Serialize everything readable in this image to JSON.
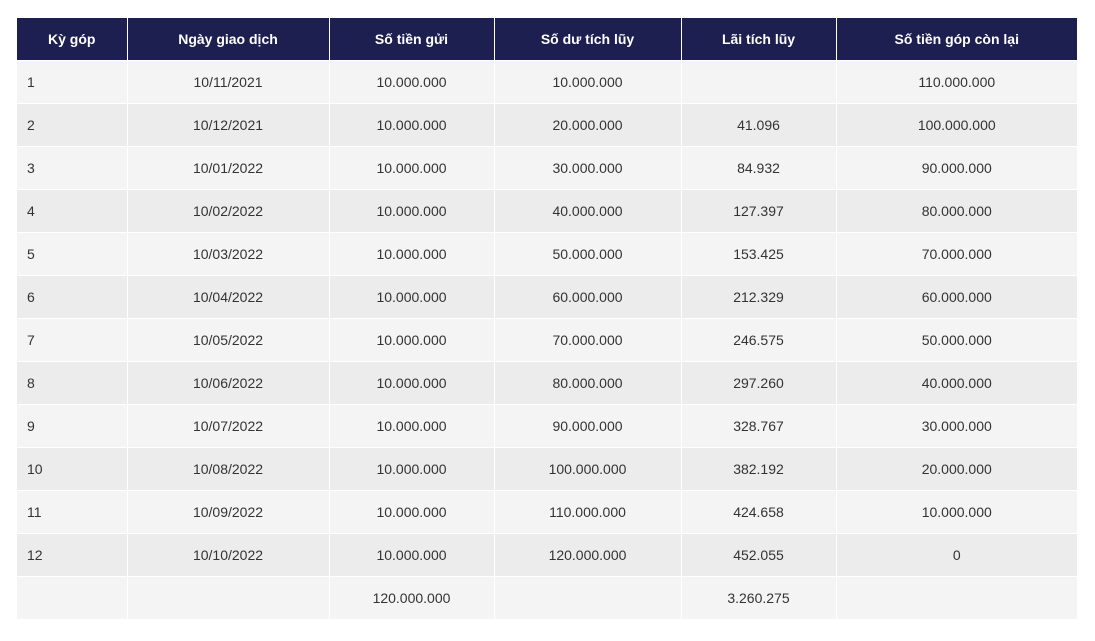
{
  "table": {
    "headers": [
      "Kỳ góp",
      "Ngày giao dịch",
      "Số tiền gửi",
      "Số dư tích lũy",
      "Lãi tích lũy",
      "Số tiền góp còn lại"
    ],
    "rows": [
      [
        "1",
        "10/11/2021",
        "10.000.000",
        "10.000.000",
        "",
        "110.000.000"
      ],
      [
        "2",
        "10/12/2021",
        "10.000.000",
        "20.000.000",
        "41.096",
        "100.000.000"
      ],
      [
        "3",
        "10/01/2022",
        "10.000.000",
        "30.000.000",
        "84.932",
        "90.000.000"
      ],
      [
        "4",
        "10/02/2022",
        "10.000.000",
        "40.000.000",
        "127.397",
        "80.000.000"
      ],
      [
        "5",
        "10/03/2022",
        "10.000.000",
        "50.000.000",
        "153.425",
        "70.000.000"
      ],
      [
        "6",
        "10/04/2022",
        "10.000.000",
        "60.000.000",
        "212.329",
        "60.000.000"
      ],
      [
        "7",
        "10/05/2022",
        "10.000.000",
        "70.000.000",
        "246.575",
        "50.000.000"
      ],
      [
        "8",
        "10/06/2022",
        "10.000.000",
        "80.000.000",
        "297.260",
        "40.000.000"
      ],
      [
        "9",
        "10/07/2022",
        "10.000.000",
        "90.000.000",
        "328.767",
        "30.000.000"
      ],
      [
        "10",
        "10/08/2022",
        "10.000.000",
        "100.000.000",
        "382.192",
        "20.000.000"
      ],
      [
        "11",
        "10/09/2022",
        "10.000.000",
        "110.000.000",
        "424.658",
        "10.000.000"
      ],
      [
        "12",
        "10/10/2022",
        "10.000.000",
        "120.000.000",
        "452.055",
        "0"
      ]
    ],
    "totals": [
      "",
      "",
      "120.000.000",
      "",
      "3.260.275",
      ""
    ]
  }
}
